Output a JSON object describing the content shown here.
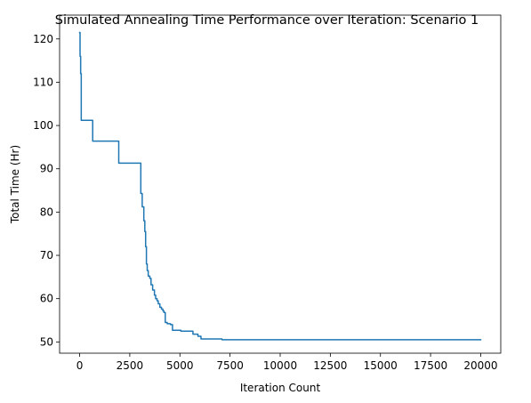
{
  "chart_data": {
    "type": "line",
    "title": "Simulated Annealing Time Performance over Iteration: Scenario 1",
    "xlabel": "Iteration Count",
    "ylabel": "Total Time (Hr)",
    "xlim": [
      -1000,
      21000
    ],
    "ylim": [
      47.4,
      125.5
    ],
    "xticks": [
      0,
      2500,
      5000,
      7500,
      10000,
      12500,
      15000,
      17500,
      20000
    ],
    "yticks": [
      50,
      60,
      70,
      80,
      90,
      100,
      110,
      120
    ],
    "grid": false,
    "legend": "none",
    "color": "#1f77b4",
    "series": [
      {
        "drawstyle": "steps-post",
        "x": [
          0,
          20,
          50,
          80,
          650,
          1950,
          3050,
          3120,
          3200,
          3250,
          3290,
          3330,
          3370,
          3420,
          3500,
          3560,
          3640,
          3730,
          3790,
          3860,
          3920,
          4000,
          4080,
          4150,
          4200,
          4270,
          4370,
          4530,
          4630,
          5050,
          5650,
          5900,
          6050,
          7100,
          20000
        ],
        "y": [
          121.5,
          116.0,
          112.0,
          101.2,
          96.4,
          91.3,
          84.3,
          81.2,
          78.0,
          75.5,
          72.0,
          68.0,
          66.5,
          65.2,
          64.7,
          63.2,
          62.0,
          60.8,
          60.0,
          59.5,
          58.8,
          58.0,
          57.6,
          57.2,
          56.8,
          54.5,
          54.2,
          54.0,
          52.7,
          52.5,
          51.8,
          51.3,
          50.7,
          50.5,
          50.5
        ]
      }
    ]
  }
}
